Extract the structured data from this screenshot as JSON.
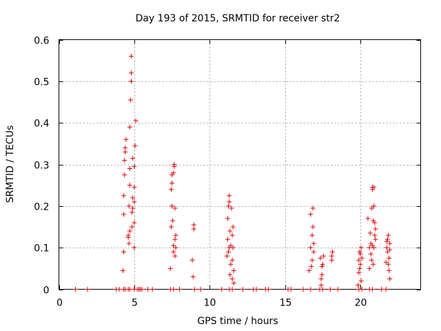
{
  "chart_data": {
    "type": "scatter",
    "title": "Day 193 of 2015, SRMTID for receiver str2",
    "xlabel": "GPS time / hours",
    "ylabel": "SRMTID / TECUs",
    "xlim": [
      0,
      24
    ],
    "ylim": [
      0,
      0.6
    ],
    "xticks": [
      0,
      5,
      10,
      15,
      20
    ],
    "yticks": [
      0,
      0.1,
      0.2,
      0.3,
      0.4,
      0.5,
      0.6
    ],
    "xtick_labels": [
      "0",
      "5",
      "10",
      "15",
      "20"
    ],
    "ytick_labels": [
      "0",
      "0.1",
      "0.2",
      "0.3",
      "0.4",
      "0.5",
      "0.6"
    ],
    "grid": true,
    "marker": "+",
    "color": "#dd0000",
    "series": [
      {
        "name": "SRMTID",
        "points": [
          [
            1.1,
            0
          ],
          [
            1.9,
            0
          ],
          [
            3.8,
            0
          ],
          [
            4.0,
            0
          ],
          [
            4.3,
            0
          ],
          [
            4.4,
            0
          ],
          [
            4.6,
            0
          ],
          [
            4.7,
            0
          ],
          [
            5.0,
            0
          ],
          [
            5.2,
            0
          ],
          [
            5.3,
            0
          ],
          [
            5.4,
            0
          ],
          [
            5.5,
            0
          ],
          [
            5.9,
            0
          ],
          [
            6.2,
            0
          ],
          [
            7.4,
            0
          ],
          [
            7.6,
            0
          ],
          [
            8.0,
            0
          ],
          [
            9.0,
            0
          ],
          [
            9.4,
            0
          ],
          [
            10.8,
            0
          ],
          [
            11.3,
            0
          ],
          [
            11.5,
            0
          ],
          [
            12.2,
            0
          ],
          [
            12.9,
            0
          ],
          [
            13.1,
            0
          ],
          [
            13.7,
            0
          ],
          [
            13.9,
            0
          ],
          [
            15.2,
            0
          ],
          [
            15.4,
            0
          ],
          [
            16.2,
            0
          ],
          [
            16.7,
            0
          ],
          [
            17.3,
            0
          ],
          [
            17.5,
            0
          ],
          [
            18.0,
            0
          ],
          [
            18.5,
            0
          ],
          [
            19.9,
            0
          ],
          [
            20.1,
            0
          ],
          [
            20.6,
            0
          ],
          [
            20.8,
            0
          ],
          [
            21.4,
            0
          ],
          [
            21.7,
            0
          ],
          [
            4.25,
            0.045
          ],
          [
            4.3,
            0.09
          ],
          [
            4.3,
            0.18
          ],
          [
            4.3,
            0.225
          ],
          [
            4.35,
            0.275
          ],
          [
            4.35,
            0.31
          ],
          [
            4.4,
            0.33
          ],
          [
            4.4,
            0.34
          ],
          [
            4.45,
            0.36
          ],
          [
            4.6,
            0.125
          ],
          [
            4.6,
            0.13
          ],
          [
            4.65,
            0.11
          ],
          [
            4.65,
            0.2
          ],
          [
            4.7,
            0.14
          ],
          [
            4.7,
            0.25
          ],
          [
            4.7,
            0.29
          ],
          [
            4.7,
            0.39
          ],
          [
            4.75,
            0.455
          ],
          [
            4.8,
            0.5
          ],
          [
            4.8,
            0.52
          ],
          [
            4.8,
            0.56
          ],
          [
            4.85,
            0.15
          ],
          [
            4.85,
            0.185
          ],
          [
            4.9,
            0.195
          ],
          [
            4.9,
            0.22
          ],
          [
            4.9,
            0.315
          ],
          [
            5.0,
            0.1
          ],
          [
            5.0,
            0.16
          ],
          [
            5.0,
            0.21
          ],
          [
            5.0,
            0.245
          ],
          [
            5.0,
            0.295
          ],
          [
            5.05,
            0.345
          ],
          [
            5.1,
            0.405
          ],
          [
            7.4,
            0.05
          ],
          [
            7.45,
            0.15
          ],
          [
            7.45,
            0.24
          ],
          [
            7.5,
            0.2
          ],
          [
            7.5,
            0.255
          ],
          [
            7.5,
            0.275
          ],
          [
            7.55,
            0.165
          ],
          [
            7.6,
            0.09
          ],
          [
            7.6,
            0.105
          ],
          [
            7.6,
            0.28
          ],
          [
            7.65,
            0.3
          ],
          [
            7.65,
            0.295
          ],
          [
            7.7,
            0.08
          ],
          [
            7.7,
            0.12
          ],
          [
            7.7,
            0.195
          ],
          [
            7.75,
            0.1
          ],
          [
            7.75,
            0.13
          ],
          [
            8.85,
            0.07
          ],
          [
            8.9,
            0.03
          ],
          [
            8.95,
            0.145
          ],
          [
            8.95,
            0.155
          ],
          [
            11.15,
            0.08
          ],
          [
            11.2,
            0.12
          ],
          [
            11.2,
            0.17
          ],
          [
            11.25,
            0.09
          ],
          [
            11.25,
            0.2
          ],
          [
            11.3,
            0.1
          ],
          [
            11.3,
            0.21
          ],
          [
            11.3,
            0.225
          ],
          [
            11.35,
            0.14
          ],
          [
            11.35,
            0.035
          ],
          [
            11.4,
            0.06
          ],
          [
            11.4,
            0.105
          ],
          [
            11.45,
            0.195
          ],
          [
            11.5,
            0.025
          ],
          [
            11.5,
            0.07
          ],
          [
            11.5,
            0.13
          ],
          [
            11.55,
            0.1
          ],
          [
            11.55,
            0.15
          ],
          [
            11.6,
            0.015
          ],
          [
            11.6,
            0.045
          ],
          [
            16.6,
            0.045
          ],
          [
            16.7,
            0.1
          ],
          [
            16.7,
            0.18
          ],
          [
            16.75,
            0.055
          ],
          [
            16.8,
            0.07
          ],
          [
            16.8,
            0.13
          ],
          [
            16.85,
            0.15
          ],
          [
            16.85,
            0.195
          ],
          [
            16.9,
            0.09
          ],
          [
            16.9,
            0.11
          ],
          [
            17.35,
            0.075
          ],
          [
            17.4,
            0.01
          ],
          [
            17.4,
            0.025
          ],
          [
            17.45,
            0.035
          ],
          [
            17.45,
            0.055
          ],
          [
            17.5,
            0.06
          ],
          [
            17.55,
            0.08
          ],
          [
            18.1,
            0.07
          ],
          [
            18.1,
            0.08
          ],
          [
            18.15,
            0.09
          ],
          [
            19.85,
            0.01
          ],
          [
            19.9,
            0.04
          ],
          [
            19.9,
            0.07
          ],
          [
            19.95,
            0.05
          ],
          [
            19.95,
            0.09
          ],
          [
            20.0,
            0.06
          ],
          [
            20.0,
            0.085
          ],
          [
            20.05,
            0.02
          ],
          [
            20.05,
            0.1
          ],
          [
            20.1,
            0.075
          ],
          [
            20.5,
            0.17
          ],
          [
            20.6,
            0.05
          ],
          [
            20.6,
            0.1
          ],
          [
            20.65,
            0.135
          ],
          [
            20.7,
            0.085
          ],
          [
            20.7,
            0.11
          ],
          [
            20.75,
            0.07
          ],
          [
            20.75,
            0.195
          ],
          [
            20.8,
            0.105
          ],
          [
            20.8,
            0.24
          ],
          [
            20.8,
            0.245
          ],
          [
            20.85,
            0.06
          ],
          [
            20.85,
            0.165
          ],
          [
            20.9,
            0.1
          ],
          [
            20.9,
            0.2
          ],
          [
            20.9,
            0.245
          ],
          [
            20.95,
            0.13
          ],
          [
            20.95,
            0.16
          ],
          [
            21.0,
            0.145
          ],
          [
            21.0,
            0.12
          ],
          [
            21.7,
            0.065
          ],
          [
            21.75,
            0.1
          ],
          [
            21.75,
            0.115
          ],
          [
            21.8,
            0.09
          ],
          [
            21.8,
            0.12
          ],
          [
            21.85,
            0.06
          ],
          [
            21.85,
            0.13
          ],
          [
            21.9,
            0.045
          ],
          [
            21.9,
            0.075
          ],
          [
            21.95,
            0.025
          ],
          [
            21.95,
            0.095
          ],
          [
            21.95,
            0.11
          ]
        ]
      }
    ]
  }
}
